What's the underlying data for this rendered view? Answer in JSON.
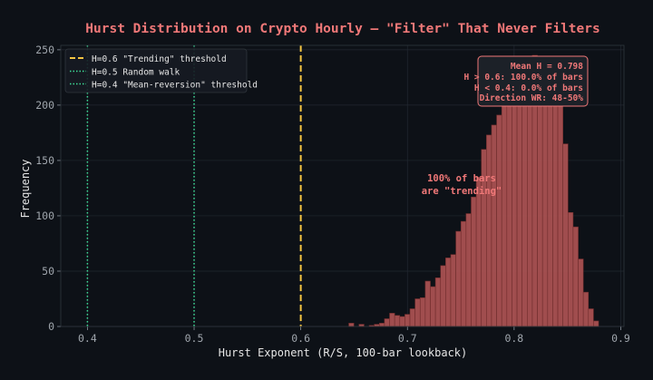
{
  "chart_data": {
    "type": "bar",
    "title": "Hurst Distribution on Crypto Hourly — \"Filter\" That Never Filters",
    "xlabel": "Hurst Exponent (R/S, 100-bar lookback)",
    "ylabel": "Frequency",
    "xlim": [
      0.375,
      0.903
    ],
    "ylim": [
      0,
      254
    ],
    "xticks": [
      "0.4",
      "0.5",
      "0.6",
      "0.7",
      "0.8",
      "0.9"
    ],
    "xtick_values": [
      0.4,
      0.5,
      0.6,
      0.7,
      0.8,
      0.9
    ],
    "yticks": [
      "0",
      "50",
      "100",
      "150",
      "200",
      "250"
    ],
    "ytick_values": [
      0,
      50,
      100,
      150,
      200,
      250
    ],
    "grid": true,
    "histogram": {
      "bin_start": 0.645,
      "bin_width": 0.00478,
      "counts": [
        3,
        0,
        2,
        0,
        1,
        2,
        3,
        7,
        12,
        10,
        9,
        11,
        16,
        25,
        26,
        41,
        36,
        44,
        55,
        62,
        65,
        86,
        95,
        102,
        117,
        135,
        160,
        173,
        182,
        191,
        210,
        218,
        225,
        232,
        238,
        242,
        245,
        240,
        235,
        228,
        222,
        214,
        165,
        103,
        90,
        61,
        31,
        16,
        5
      ],
      "color": "#b05454"
    },
    "vlines": [
      {
        "x": 0.6,
        "label": "H=0.6 \"Trending\" threshold",
        "style": "dashed",
        "color": "#f5c542"
      },
      {
        "x": 0.5,
        "label": "H=0.5 Random walk",
        "style": "dotted",
        "color": "#3ddc97"
      },
      {
        "x": 0.4,
        "label": "H=0.4 \"Mean-reversion\" threshold",
        "style": "dotted",
        "color": "#3ddc97"
      }
    ],
    "legend_position": "top-left",
    "stats_box": [
      "Mean H = 0.798",
      "H > 0.6: 100.0% of bars",
      "H < 0.4: 0.0% of bars",
      "Direction WR: 48-50%"
    ],
    "annotation": [
      "100% of bars",
      "are \"trending\""
    ],
    "accent_color": "#f07878",
    "background": "#0d1117"
  }
}
